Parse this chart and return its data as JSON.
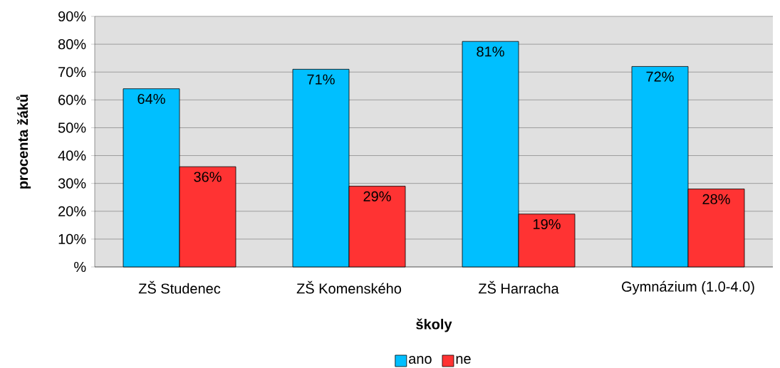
{
  "chart_data": {
    "type": "bar",
    "xlabel": "školy",
    "ylabel": "procenta žáků",
    "categories": [
      "ZŠ Studenec",
      "ZŠ Komenského",
      "ZŠ Harracha",
      "Gymnázium (1.0-4.0)"
    ],
    "series": [
      {
        "name": "ano",
        "color": "#00bfff",
        "values": [
          64,
          71,
          81,
          72
        ],
        "value_labels": [
          "64%",
          "71%",
          "81%",
          "72%"
        ]
      },
      {
        "name": "ne",
        "color": "#ff3333",
        "values": [
          36,
          29,
          19,
          28
        ],
        "value_labels": [
          "36%",
          "29%",
          "19%",
          "28%"
        ]
      }
    ],
    "ylim": [
      0,
      90
    ],
    "yticks": [
      {
        "value": 0,
        "label": "%"
      },
      {
        "value": 10,
        "label": "10%"
      },
      {
        "value": 20,
        "label": "20%"
      },
      {
        "value": 30,
        "label": "30%"
      },
      {
        "value": 40,
        "label": "40%"
      },
      {
        "value": 50,
        "label": "50%"
      },
      {
        "value": 60,
        "label": "60%"
      },
      {
        "value": 70,
        "label": "70%"
      },
      {
        "value": 80,
        "label": "80%"
      },
      {
        "value": 90,
        "label": "90%"
      }
    ],
    "grid": "y",
    "legend": "bottom"
  }
}
